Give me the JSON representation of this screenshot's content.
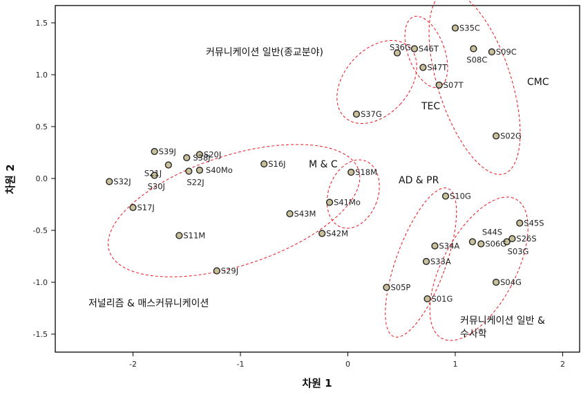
{
  "chart_data": {
    "type": "scatter",
    "xlabel": "차원 1",
    "ylabel": "차원 2",
    "xlim": [
      -2.65,
      2.2
    ],
    "ylim": [
      -1.65,
      1.65
    ],
    "x_ticks": [
      -2,
      -1,
      0,
      1,
      2
    ],
    "y_ticks": [
      -1.5,
      -1.0,
      -0.5,
      0.0,
      0.5,
      1.0,
      1.5
    ],
    "x_tick_labels": [
      "-2",
      "-1",
      "0",
      "1",
      "2"
    ],
    "y_tick_labels": [
      "-1.5",
      "-1.0",
      "-0.5",
      "0.0",
      "0.5",
      "1.0",
      "1.5"
    ],
    "grid": false,
    "marker_fill": "#c8c09a",
    "marker_stroke": "#222222",
    "ellipse_color": "#e8141b",
    "points": [
      {
        "label": "S35C",
        "x": 1.0,
        "y": 1.45
      },
      {
        "label": "S36G",
        "x": 0.46,
        "y": 1.21
      },
      {
        "label": "S46T",
        "x": 0.62,
        "y": 1.25
      },
      {
        "label": "S08C",
        "x": 1.17,
        "y": 1.25
      },
      {
        "label": "S09C",
        "x": 1.34,
        "y": 1.22
      },
      {
        "label": "S47T",
        "x": 0.7,
        "y": 1.07
      },
      {
        "label": "S07T",
        "x": 0.85,
        "y": 0.9
      },
      {
        "label": "S37G",
        "x": 0.08,
        "y": 0.62
      },
      {
        "label": "S02G",
        "x": 1.38,
        "y": 0.41
      },
      {
        "label": "S39J",
        "x": -1.8,
        "y": 0.26
      },
      {
        "label": "S20J",
        "x": -1.38,
        "y": 0.23
      },
      {
        "label": "S38J",
        "x": -1.5,
        "y": 0.2
      },
      {
        "label": "S21J",
        "x": -1.67,
        "y": 0.13
      },
      {
        "label": "S16J",
        "x": -0.78,
        "y": 0.14
      },
      {
        "label": "S40Mo",
        "x": -1.38,
        "y": 0.08
      },
      {
        "label": "S30J",
        "x": -1.8,
        "y": 0.03
      },
      {
        "label": "S22J",
        "x": -1.48,
        "y": 0.07
      },
      {
        "label": "S32J",
        "x": -2.22,
        "y": -0.03
      },
      {
        "label": "S18M",
        "x": 0.03,
        "y": 0.06
      },
      {
        "label": "S10G",
        "x": 0.91,
        "y": -0.17
      },
      {
        "label": "S41Mo",
        "x": -0.17,
        "y": -0.23
      },
      {
        "label": "S17J",
        "x": -2.0,
        "y": -0.28
      },
      {
        "label": "S43M",
        "x": -0.54,
        "y": -0.34
      },
      {
        "label": "S42M",
        "x": -0.24,
        "y": -0.53
      },
      {
        "label": "S11M",
        "x": -1.57,
        "y": -0.55
      },
      {
        "label": "S45S",
        "x": 1.6,
        "y": -0.43
      },
      {
        "label": "S44S",
        "x": 1.16,
        "y": -0.61
      },
      {
        "label": "S06G",
        "x": 1.24,
        "y": -0.63
      },
      {
        "label": "S26S",
        "x": 1.53,
        "y": -0.58
      },
      {
        "label": "S03G",
        "x": 1.48,
        "y": -0.61
      },
      {
        "label": "S34A",
        "x": 0.81,
        "y": -0.65
      },
      {
        "label": "S33A",
        "x": 0.73,
        "y": -0.8
      },
      {
        "label": "S29J",
        "x": -1.22,
        "y": -0.89
      },
      {
        "label": "S04G",
        "x": 1.38,
        "y": -1.0
      },
      {
        "label": "S05P",
        "x": 0.36,
        "y": -1.05
      },
      {
        "label": "S01G",
        "x": 0.74,
        "y": -1.16
      }
    ],
    "clusters": [
      {
        "label": "커뮤니케이션 일반(종교분야)",
        "center": [
          0.27,
          0.93
        ],
        "radii": [
          0.3,
          0.46
        ],
        "rotation_deg": 42
      },
      {
        "label": "TEC",
        "center": [
          0.73,
          1.22
        ],
        "radii": [
          0.17,
          0.36
        ],
        "rotation_deg": -20
      },
      {
        "label": "CMC",
        "center": [
          1.18,
          0.92
        ],
        "radii": [
          0.34,
          0.92
        ],
        "rotation_deg": -18
      },
      {
        "label": "저널리즘 & 매스커뮤니케이션",
        "center": [
          -1.06,
          -0.31
        ],
        "radii": [
          1.22,
          0.53
        ],
        "rotation_deg": -18
      },
      {
        "label": "M & C",
        "center": [
          0.05,
          -0.15
        ],
        "radii": [
          0.23,
          0.34
        ],
        "rotation_deg": 20
      },
      {
        "label": "AD & PR",
        "center": [
          0.68,
          -0.81
        ],
        "radii": [
          0.23,
          0.76
        ],
        "rotation_deg": 20
      },
      {
        "label": "커뮤니케이션 일반 & 수사학",
        "center": [
          1.22,
          -0.87
        ],
        "radii": [
          0.34,
          0.76
        ],
        "rotation_deg": 28
      }
    ]
  }
}
